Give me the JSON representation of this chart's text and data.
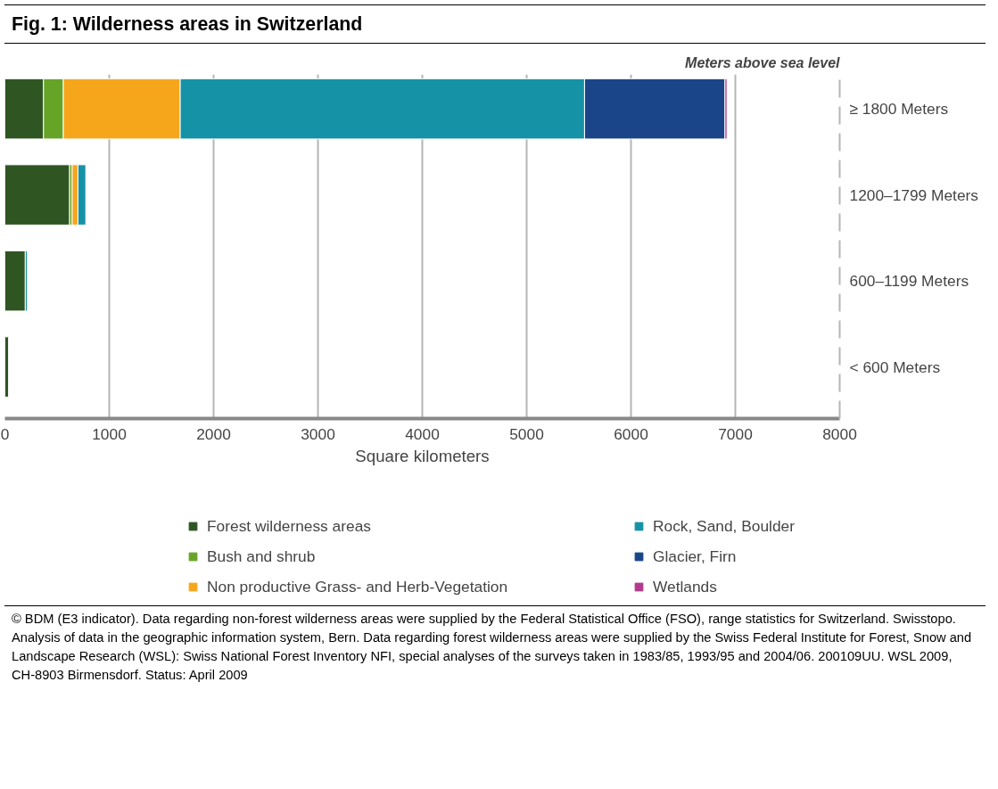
{
  "chart_data": {
    "type": "bar",
    "orientation": "horizontal",
    "stacked": true,
    "title": "Fig. 1: Wilderness areas in Switzerland",
    "xlabel": "Square kilometers",
    "ylabel": "Meters above sea level",
    "categories": [
      "≥ 1800 Meters",
      "1200–1799 Meters",
      "600–1199 Meters",
      "< 600 Meters"
    ],
    "series": [
      {
        "name": "Forest wilderness areas",
        "color": "#2f5522",
        "values": [
          370,
          620,
          195,
          35
        ]
      },
      {
        "name": "Bush and shrub",
        "color": "#66a428",
        "values": [
          190,
          25,
          null,
          null
        ]
      },
      {
        "name": "Non productive Grass- and Herb-Vegetation",
        "color": "#f5a61b",
        "values": [
          1120,
          55,
          null,
          null
        ]
      },
      {
        "name": "Rock, Sand, Boulder",
        "color": "#1592a6",
        "values": [
          3875,
          75,
          20,
          null
        ]
      },
      {
        "name": "Glacier, Firn",
        "color": "#1a4589",
        "values": [
          1345,
          null,
          null,
          null
        ]
      },
      {
        "name": "Wetlands",
        "color": "#b03a8d",
        "values": [
          20,
          null,
          null,
          null
        ]
      }
    ],
    "xlim": [
      0,
      8000
    ],
    "xticks": [
      0,
      1000,
      2000,
      3000,
      4000,
      5000,
      6000,
      7000,
      8000
    ],
    "grid": "x",
    "legend": "bottom",
    "annotations": [
      "© BDM (E3 indicator). Data regarding non-forest wilderness areas were supplied by the Federal Statistical Office (FSO), range statistics for Switzerland. Swisstopo. Analysis of data in the geographic information system, Bern. Data regarding forest wilderness areas were supplied by the Swiss Federal Institute for Forest, Snow and Landscape Research (WSL): Swiss National Forest Inventory NFI, special analyses of the surveys taken in 1983/85, 1993/95 and 2004/06. 200109UU. WSL 2009, CH-8903 Birmensdorf. Status: April 2009"
    ]
  }
}
